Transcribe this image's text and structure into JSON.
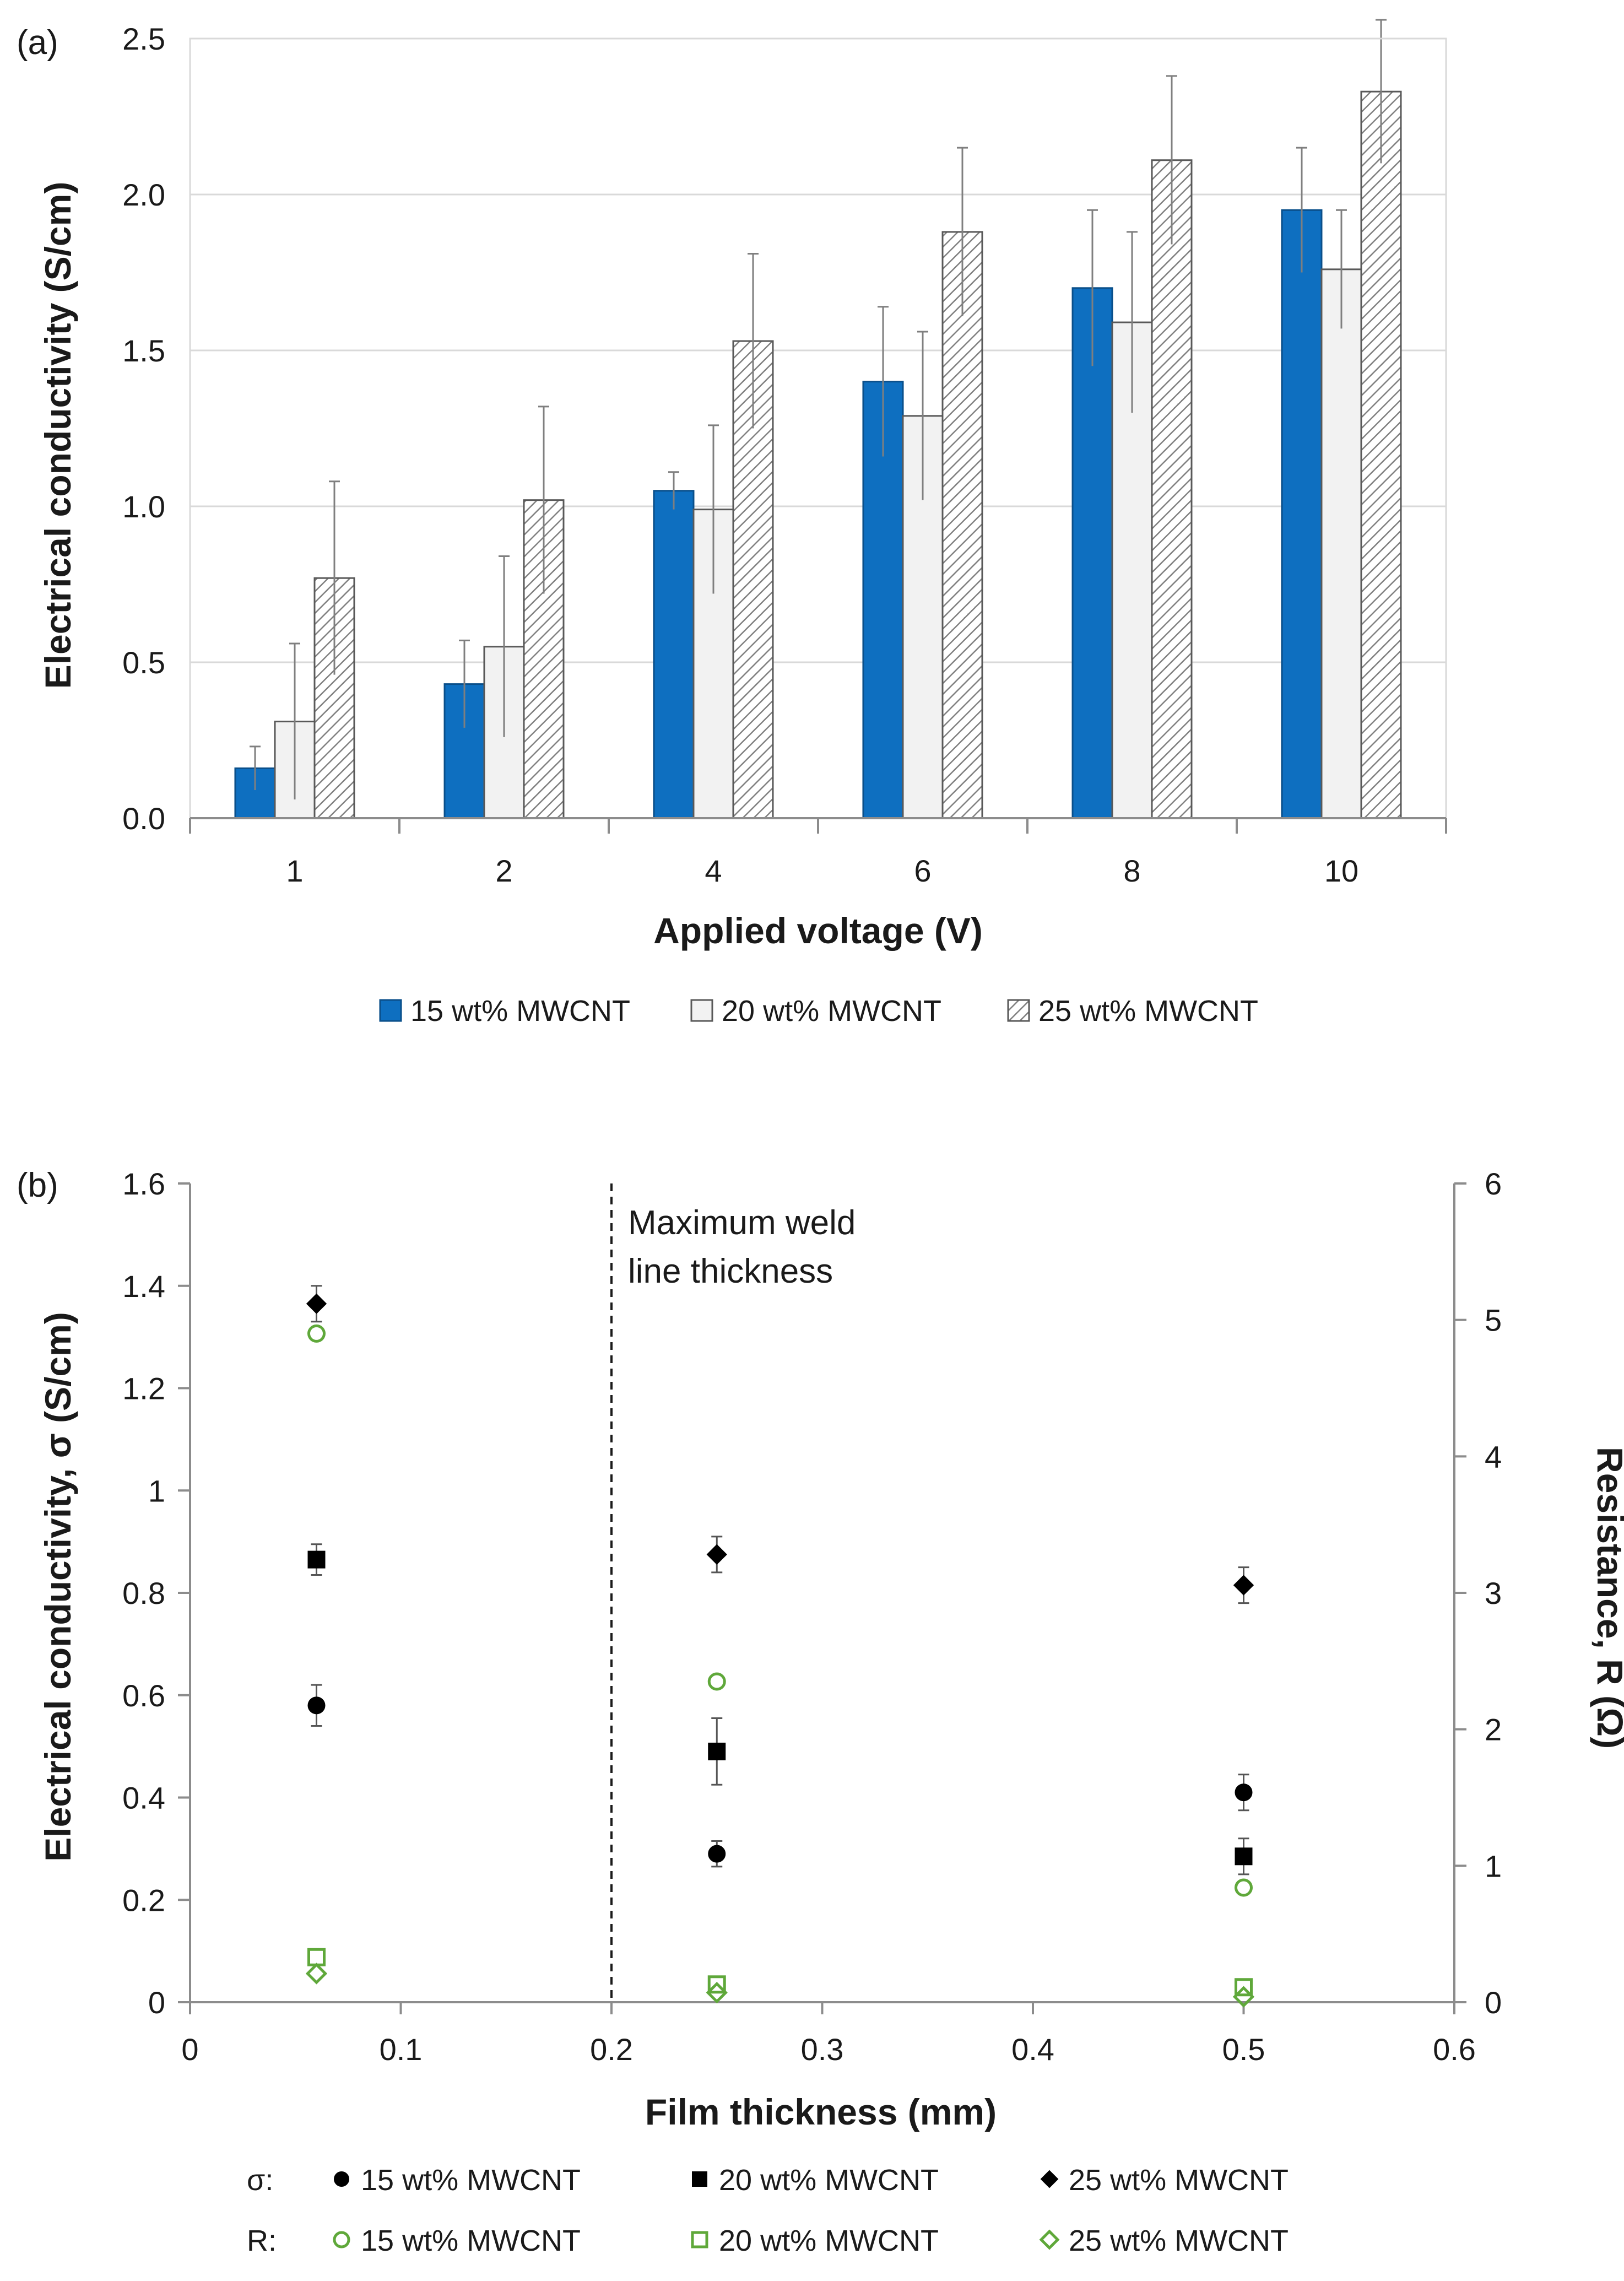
{
  "panel_labels": [
    "(a)",
    "(b)"
  ],
  "chart_data": [
    {
      "type": "bar",
      "panel": "(a)",
      "categories": [
        "1",
        "2",
        "4",
        "6",
        "8",
        "10"
      ],
      "xlabel": "Applied voltage (V)",
      "ylabel": "Electrical conductivity (S/cm)",
      "ylim": [
        0,
        2.5
      ],
      "yticks": [
        "0.0",
        "0.5",
        "1.0",
        "1.5",
        "2.0",
        "2.5"
      ],
      "grid": "horizontal",
      "legend_position": "bottom",
      "series": [
        {
          "name": "15 wt% MWCNT",
          "style": "solid",
          "color": "#0e6fc0",
          "values": [
            0.16,
            0.43,
            1.05,
            1.4,
            1.7,
            1.95
          ],
          "errors": [
            0.07,
            0.14,
            0.06,
            0.24,
            0.25,
            0.2
          ]
        },
        {
          "name": "20 wt% MWCNT",
          "style": "light",
          "color": "#f2f2f2",
          "values": [
            0.31,
            0.55,
            0.99,
            1.29,
            1.59,
            1.76
          ],
          "errors": [
            0.25,
            0.29,
            0.27,
            0.27,
            0.29,
            0.19
          ]
        },
        {
          "name": "25 wt% MWCNT",
          "style": "hatched",
          "color": "#8c8c8c",
          "values": [
            0.77,
            1.02,
            1.53,
            1.88,
            2.11,
            2.33
          ],
          "errors": [
            0.31,
            0.3,
            0.28,
            0.27,
            0.27,
            0.23
          ]
        }
      ]
    },
    {
      "type": "scatter",
      "panel": "(b)",
      "xlabel": "Film thickness (mm)",
      "ylabel": "Electrical conductivity, σ (S/cm)",
      "y2label": "Resistance, R (Ω)",
      "xlim": [
        0,
        0.6
      ],
      "ylim": [
        0,
        1.6
      ],
      "y2lim": [
        0,
        6
      ],
      "xticks": [
        "0",
        "0.1",
        "0.2",
        "0.3",
        "0.4",
        "0.5",
        "0.6"
      ],
      "yticks": [
        "0",
        "0.2",
        "0.4",
        "0.6",
        "0.8",
        "1",
        "1.2",
        "1.4",
        "1.6"
      ],
      "y2ticks": [
        "0",
        "1",
        "2",
        "3",
        "4",
        "5",
        "6"
      ],
      "annotation": {
        "x": 0.2,
        "lines": [
          "Maximum weld",
          "line thickness"
        ]
      },
      "legend_position": "bottom",
      "legend_row_labels": {
        "sigma": "σ:",
        "resistance": "R:"
      },
      "series": [
        {
          "name": "15 wt% MWCNT",
          "quantity": "σ",
          "axis": "left",
          "marker": "circle",
          "filled": true,
          "color": "#000000",
          "points": [
            {
              "x": 0.06,
              "y": 0.58,
              "err": 0.04
            },
            {
              "x": 0.25,
              "y": 0.29,
              "err": 0.025
            },
            {
              "x": 0.5,
              "y": 0.41,
              "err": 0.035
            }
          ]
        },
        {
          "name": "20 wt% MWCNT",
          "quantity": "σ",
          "axis": "left",
          "marker": "square",
          "filled": true,
          "color": "#000000",
          "points": [
            {
              "x": 0.06,
              "y": 0.865,
              "err": 0.03
            },
            {
              "x": 0.25,
              "y": 0.49,
              "err": 0.065
            },
            {
              "x": 0.5,
              "y": 0.285,
              "err": 0.035
            }
          ]
        },
        {
          "name": "25 wt% MWCNT",
          "quantity": "σ",
          "axis": "left",
          "marker": "diamond",
          "filled": true,
          "color": "#000000",
          "points": [
            {
              "x": 0.06,
              "y": 1.365,
              "err": 0.035
            },
            {
              "x": 0.25,
              "y": 0.875,
              "err": 0.035
            },
            {
              "x": 0.5,
              "y": 0.815,
              "err": 0.035
            }
          ]
        },
        {
          "name": "15 wt% MWCNT",
          "quantity": "R",
          "axis": "right",
          "marker": "circle",
          "filled": false,
          "color": "#5fa83a",
          "points": [
            {
              "x": 0.06,
              "y": 4.9
            },
            {
              "x": 0.25,
              "y": 2.35
            },
            {
              "x": 0.5,
              "y": 0.84
            }
          ]
        },
        {
          "name": "20 wt% MWCNT",
          "quantity": "R",
          "axis": "right",
          "marker": "square",
          "filled": false,
          "color": "#5fa83a",
          "points": [
            {
              "x": 0.06,
              "y": 0.33
            },
            {
              "x": 0.25,
              "y": 0.13
            },
            {
              "x": 0.5,
              "y": 0.11
            }
          ]
        },
        {
          "name": "25 wt% MWCNT",
          "quantity": "R",
          "axis": "right",
          "marker": "diamond",
          "filled": false,
          "color": "#5fa83a",
          "points": [
            {
              "x": 0.06,
              "y": 0.21
            },
            {
              "x": 0.25,
              "y": 0.07
            },
            {
              "x": 0.5,
              "y": 0.04
            }
          ]
        }
      ]
    }
  ]
}
